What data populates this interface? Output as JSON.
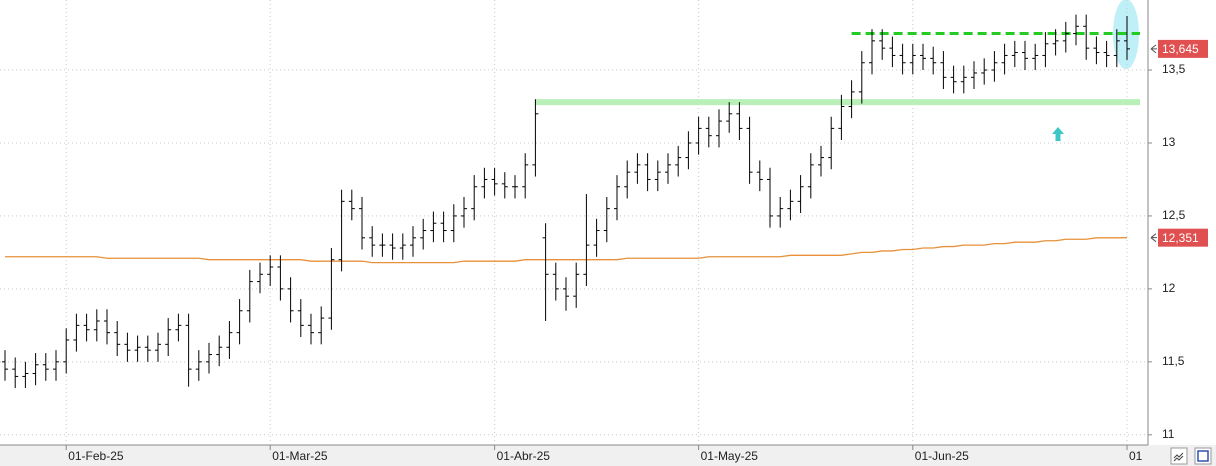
{
  "chart_data": {
    "type": "ohlc",
    "categories": [
      null,
      null,
      null,
      null,
      null,
      null,
      "01-Feb-25",
      null,
      null,
      null,
      null,
      null,
      null,
      null,
      null,
      null,
      null,
      null,
      null,
      null,
      null,
      null,
      null,
      null,
      null,
      null,
      "01-Mar-25",
      null,
      null,
      null,
      null,
      null,
      null,
      null,
      null,
      null,
      null,
      null,
      null,
      null,
      null,
      null,
      null,
      null,
      null,
      null,
      null,
      null,
      "01-Abr-25",
      null,
      null,
      null,
      null,
      null,
      null,
      null,
      null,
      null,
      null,
      null,
      null,
      null,
      null,
      null,
      null,
      null,
      null,
      null,
      "01-May-25",
      null,
      null,
      null,
      null,
      null,
      null,
      null,
      null,
      null,
      null,
      null,
      null,
      null,
      null,
      null,
      null,
      null,
      null,
      null,
      null,
      "01-Jun-25",
      null,
      null,
      null,
      null,
      null,
      null,
      null,
      null,
      null,
      null,
      null,
      null,
      null,
      null,
      null,
      null,
      null,
      null,
      null,
      null,
      "01"
    ],
    "open": [
      11.5,
      11.45,
      11.4,
      11.42,
      11.48,
      11.45,
      11.5,
      11.65,
      11.75,
      11.72,
      11.78,
      11.7,
      11.62,
      11.58,
      11.6,
      11.58,
      11.62,
      11.72,
      11.75,
      11.45,
      11.5,
      11.55,
      11.6,
      11.7,
      11.85,
      12.05,
      12.1,
      12.15,
      12.0,
      11.85,
      11.75,
      11.7,
      11.8,
      12.2,
      12.6,
      12.55,
      12.35,
      12.3,
      12.3,
      12.28,
      12.3,
      12.35,
      12.4,
      12.45,
      12.4,
      12.5,
      12.55,
      12.7,
      12.75,
      12.72,
      12.7,
      12.7,
      12.85,
      12.35,
      12.1,
      12.0,
      11.95,
      12.1,
      12.3,
      12.4,
      12.55,
      12.7,
      12.8,
      12.85,
      12.75,
      12.8,
      12.85,
      12.9,
      13.0,
      13.1,
      13.05,
      13.15,
      13.2,
      13.1,
      12.8,
      12.75,
      12.5,
      12.55,
      12.6,
      12.7,
      12.85,
      12.9,
      13.1,
      13.25,
      13.35,
      13.55,
      13.7,
      13.65,
      13.6,
      13.55,
      13.6,
      13.58,
      13.55,
      13.45,
      13.42,
      13.45,
      13.48,
      13.5,
      13.55,
      13.6,
      13.62,
      13.58,
      13.6,
      13.68,
      13.7,
      13.75,
      13.8,
      13.65,
      13.62,
      13.6,
      13.7
    ],
    "high": [
      11.58,
      11.53,
      11.5,
      11.56,
      11.56,
      11.58,
      11.73,
      11.83,
      11.83,
      11.86,
      11.86,
      11.78,
      11.7,
      11.68,
      11.68,
      11.7,
      11.8,
      11.83,
      11.83,
      11.58,
      11.63,
      11.68,
      11.78,
      11.93,
      12.13,
      12.18,
      12.23,
      12.23,
      12.08,
      11.93,
      11.83,
      11.88,
      12.28,
      12.68,
      12.68,
      12.63,
      12.43,
      12.38,
      12.38,
      12.38,
      12.43,
      12.48,
      12.53,
      12.53,
      12.58,
      12.63,
      12.78,
      12.83,
      12.83,
      12.8,
      12.78,
      12.93,
      13.3,
      12.45,
      12.18,
      12.08,
      12.18,
      12.65,
      12.48,
      12.63,
      12.78,
      12.88,
      12.93,
      12.93,
      12.88,
      12.93,
      12.98,
      13.08,
      13.18,
      13.18,
      13.23,
      13.28,
      13.28,
      13.18,
      12.88,
      12.83,
      12.63,
      12.68,
      12.78,
      12.93,
      12.98,
      13.18,
      13.33,
      13.43,
      13.63,
      13.78,
      13.78,
      13.73,
      13.68,
      13.68,
      13.68,
      13.66,
      13.63,
      13.53,
      13.53,
      13.56,
      13.58,
      13.63,
      13.68,
      13.7,
      13.7,
      13.68,
      13.76,
      13.78,
      13.83,
      13.88,
      13.88,
      13.73,
      13.7,
      13.78,
      13.87
    ],
    "low": [
      11.37,
      11.32,
      11.32,
      11.34,
      11.37,
      11.37,
      11.42,
      11.57,
      11.64,
      11.64,
      11.62,
      11.54,
      11.5,
      11.5,
      11.5,
      11.5,
      11.54,
      11.64,
      11.33,
      11.37,
      11.42,
      11.47,
      11.52,
      11.62,
      11.77,
      11.97,
      12.02,
      11.92,
      11.77,
      11.67,
      11.62,
      11.62,
      11.72,
      12.12,
      12.47,
      12.27,
      12.22,
      12.22,
      12.2,
      12.2,
      12.22,
      12.27,
      12.32,
      12.32,
      12.32,
      12.42,
      12.47,
      12.62,
      12.64,
      12.62,
      12.62,
      12.62,
      12.77,
      11.78,
      11.92,
      11.85,
      11.87,
      12.02,
      12.22,
      12.32,
      12.47,
      12.62,
      12.72,
      12.67,
      12.67,
      12.72,
      12.77,
      12.82,
      12.92,
      12.97,
      12.97,
      13.07,
      13.02,
      12.72,
      12.67,
      12.42,
      12.42,
      12.47,
      12.52,
      12.62,
      12.77,
      12.82,
      13.02,
      13.17,
      13.27,
      13.47,
      13.57,
      13.52,
      13.47,
      13.47,
      13.5,
      13.47,
      13.37,
      13.34,
      13.34,
      13.37,
      13.4,
      13.42,
      13.47,
      13.52,
      13.5,
      13.5,
      13.52,
      13.6,
      13.62,
      13.67,
      13.57,
      13.54,
      13.52,
      13.52,
      13.57
    ],
    "close": [
      11.45,
      11.4,
      11.42,
      11.48,
      11.45,
      11.5,
      11.65,
      11.75,
      11.72,
      11.78,
      11.7,
      11.62,
      11.58,
      11.6,
      11.58,
      11.62,
      11.72,
      11.75,
      11.45,
      11.5,
      11.55,
      11.6,
      11.7,
      11.85,
      12.05,
      12.1,
      12.15,
      12.0,
      11.85,
      11.75,
      11.7,
      11.8,
      12.2,
      12.6,
      12.55,
      12.35,
      12.3,
      12.3,
      12.28,
      12.3,
      12.35,
      12.4,
      12.45,
      12.4,
      12.5,
      12.55,
      12.7,
      12.75,
      12.72,
      12.7,
      12.7,
      12.85,
      13.2,
      12.1,
      12.0,
      11.95,
      12.1,
      12.3,
      12.4,
      12.55,
      12.7,
      12.8,
      12.85,
      12.75,
      12.8,
      12.85,
      12.9,
      13.0,
      13.1,
      13.05,
      13.15,
      13.2,
      13.1,
      12.8,
      12.75,
      12.5,
      12.55,
      12.6,
      12.7,
      12.85,
      12.9,
      13.1,
      13.25,
      13.35,
      13.55,
      13.7,
      13.65,
      13.6,
      13.55,
      13.6,
      13.58,
      13.55,
      13.45,
      13.42,
      13.45,
      13.48,
      13.5,
      13.55,
      13.6,
      13.62,
      13.58,
      13.6,
      13.68,
      13.7,
      13.75,
      13.8,
      13.65,
      13.62,
      13.6,
      13.7,
      13.645
    ],
    "color": "#000000",
    "moving_average": {
      "color": "#e8913a",
      "values": [
        12.22,
        12.22,
        12.22,
        12.22,
        12.22,
        12.22,
        12.22,
        12.22,
        12.22,
        12.22,
        12.21,
        12.21,
        12.21,
        12.21,
        12.21,
        12.21,
        12.21,
        12.21,
        12.21,
        12.21,
        12.2,
        12.2,
        12.2,
        12.2,
        12.2,
        12.2,
        12.2,
        12.2,
        12.2,
        12.2,
        12.19,
        12.19,
        12.19,
        12.19,
        12.19,
        12.19,
        12.18,
        12.18,
        12.18,
        12.18,
        12.18,
        12.18,
        12.18,
        12.18,
        12.18,
        12.19,
        12.19,
        12.19,
        12.19,
        12.19,
        12.19,
        12.2,
        12.2,
        12.2,
        12.2,
        12.2,
        12.2,
        12.2,
        12.2,
        12.2,
        12.2,
        12.21,
        12.21,
        12.21,
        12.21,
        12.21,
        12.21,
        12.21,
        12.21,
        12.22,
        12.22,
        12.22,
        12.22,
        12.22,
        12.22,
        12.22,
        12.22,
        12.23,
        12.23,
        12.23,
        12.23,
        12.23,
        12.23,
        12.24,
        12.25,
        12.25,
        12.26,
        12.26,
        12.27,
        12.27,
        12.28,
        12.28,
        12.29,
        12.29,
        12.3,
        12.3,
        12.3,
        12.31,
        12.31,
        12.32,
        12.32,
        12.32,
        12.33,
        12.33,
        12.34,
        12.34,
        12.34,
        12.35,
        12.35,
        12.35,
        12.351
      ]
    },
    "price_labels": [
      {
        "value": 13.645,
        "label": "13,645",
        "color": "#e05050"
      },
      {
        "value": 12.351,
        "label": "12,351",
        "color": "#e05050"
      }
    ],
    "levels": [
      {
        "value": 13.75,
        "from": 83,
        "color": "#22cc22",
        "dashed": true
      },
      {
        "value": 13.28,
        "from": 52,
        "color": "#b8f0b8",
        "dashed": false
      }
    ],
    "ylim": [
      10.93,
      13.98
    ],
    "yticks": [
      11,
      {
        "value": 11.5,
        "label": "11,5"
      },
      12,
      {
        "value": 12.5,
        "label": "12,5"
      },
      13,
      {
        "value": 13.5,
        "label": "13,5"
      }
    ],
    "grid": true
  }
}
